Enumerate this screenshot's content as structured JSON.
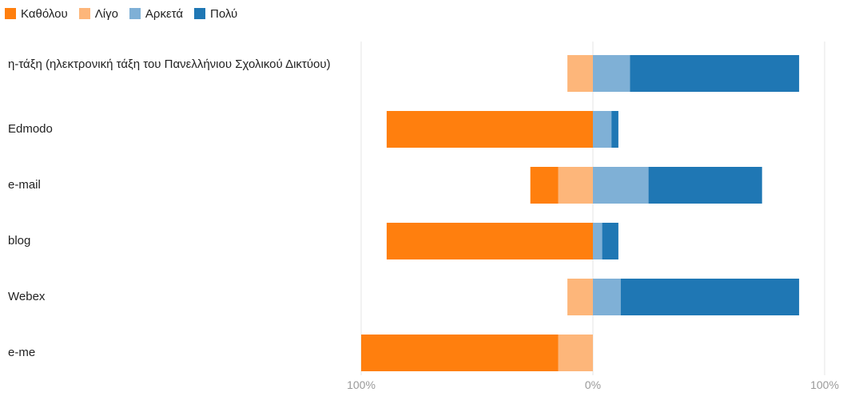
{
  "chart_data": {
    "type": "bar",
    "orientation": "horizontal",
    "stacking": "diverging",
    "legend": {
      "position": "top-left",
      "entries": [
        {
          "name": "Καθόλου",
          "color": "#ff7f0e"
        },
        {
          "name": "Λίγο",
          "color": "#fdb67a"
        },
        {
          "name": "Αρκετά",
          "color": "#7fb0d6"
        },
        {
          "name": "Πολύ",
          "color": "#1f77b4"
        }
      ]
    },
    "categories": [
      "η-τάξη (ηλεκτρονική τάξη του Πανελλήνιου Σχολικού Δικτύου)",
      "Edmodo",
      "e-mail",
      "blog",
      "Webex",
      "e-me"
    ],
    "series": [
      {
        "name": "Καθόλου",
        "values": [
          0,
          89,
          12,
          89,
          0,
          85
        ]
      },
      {
        "name": "Λίγο",
        "values": [
          11,
          0,
          15,
          0,
          11,
          15
        ]
      },
      {
        "name": "Αρκετά",
        "values": [
          16,
          8,
          24,
          4,
          12,
          0
        ]
      },
      {
        "name": "Πολύ",
        "values": [
          73,
          3,
          49,
          7,
          77,
          0
        ]
      }
    ],
    "negative_side": [
      "Καθόλου",
      "Λίγο"
    ],
    "positive_side": [
      "Αρκετά",
      "Πολύ"
    ],
    "xlim": [
      -100,
      100
    ],
    "x_ticks": [
      "100%",
      "0%",
      "100%"
    ],
    "grid": true
  }
}
